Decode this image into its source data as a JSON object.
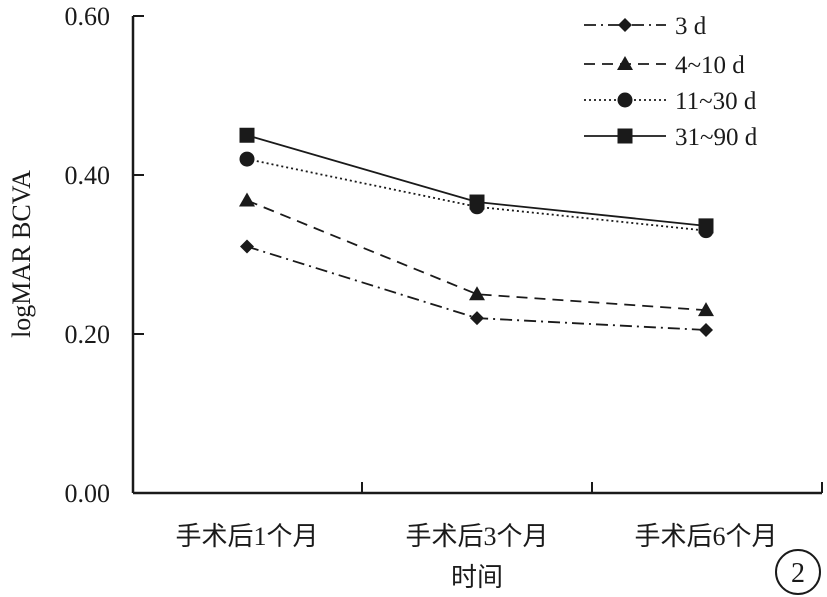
{
  "chart_data": {
    "type": "line",
    "ylabel": "logMAR BCVA",
    "xlabel": "时间",
    "categories": [
      "手术后1个月",
      "手术后3个月",
      "手术后6个月"
    ],
    "ylim": [
      0,
      0.6
    ],
    "y_ticks": [
      "0.00",
      "0.20",
      "0.40",
      "0.60"
    ],
    "legend_position": "top-right",
    "grid": false,
    "series": [
      {
        "name": "3 d",
        "values": [
          0.31,
          0.22,
          0.205
        ],
        "marker": "diamond",
        "line_style": "dash-dot"
      },
      {
        "name": "4~10 d",
        "values": [
          0.368,
          0.25,
          0.23
        ],
        "marker": "triangle",
        "line_style": "dashed"
      },
      {
        "name": "11~30 d",
        "values": [
          0.42,
          0.36,
          0.33
        ],
        "marker": "circle",
        "line_style": "dotted"
      },
      {
        "name": "31~90 d",
        "values": [
          0.45,
          0.366,
          0.336
        ],
        "marker": "square",
        "line_style": "solid"
      }
    ],
    "panel_label": "2"
  }
}
